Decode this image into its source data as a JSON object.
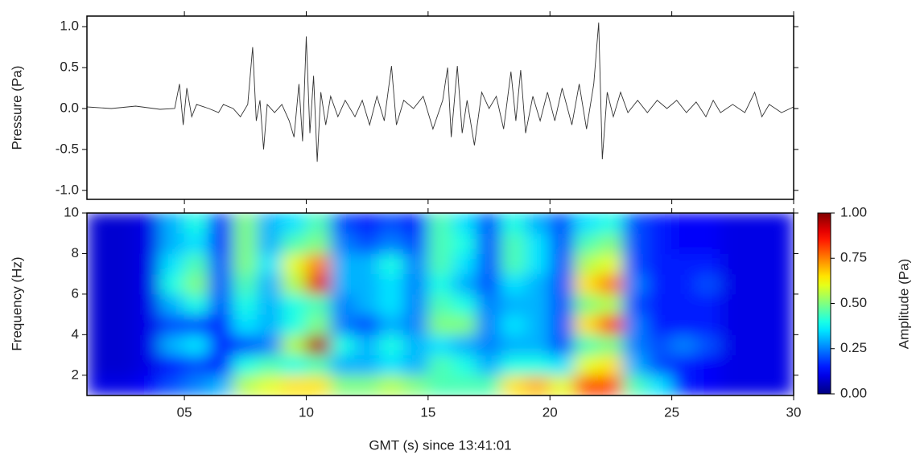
{
  "chart_data": [
    {
      "type": "line",
      "ylabel": "Pressure (Pa)",
      "color": "#333333",
      "xlim": [
        1,
        30
      ],
      "ylim": [
        -1.11,
        1.13
      ],
      "yticks": [
        {
          "value": 1,
          "label": "1.0"
        },
        0.5,
        {
          "value": 0,
          "label": "0.0"
        },
        -0.5,
        {
          "value": -1,
          "label": "-1.0"
        }
      ],
      "x": [
        1,
        2,
        3,
        4,
        4.6,
        4.8,
        4.95,
        5.1,
        5.3,
        5.5,
        6,
        6.4,
        6.6,
        7,
        7.3,
        7.6,
        7.8,
        7.95,
        8.1,
        8.25,
        8.4,
        8.7,
        9,
        9.3,
        9.5,
        9.7,
        9.85,
        10,
        10.15,
        10.3,
        10.45,
        10.6,
        10.8,
        11,
        11.3,
        11.6,
        12,
        12.3,
        12.6,
        12.9,
        13.2,
        13.5,
        13.7,
        14,
        14.4,
        14.8,
        15.2,
        15.6,
        15.8,
        15.95,
        16.2,
        16.4,
        16.6,
        16.9,
        17.2,
        17.5,
        17.8,
        18.1,
        18.4,
        18.6,
        18.8,
        19,
        19.3,
        19.6,
        19.9,
        20.2,
        20.5,
        20.9,
        21.2,
        21.5,
        21.8,
        22,
        22.15,
        22.35,
        22.6,
        22.9,
        23.2,
        23.6,
        24,
        24.4,
        24.8,
        25.2,
        25.6,
        26,
        26.4,
        26.7,
        27,
        27.5,
        28,
        28.4,
        28.7,
        29,
        29.5,
        30
      ],
      "values": [
        0.02,
        0,
        0.03,
        -0.01,
        0,
        0.3,
        -0.2,
        0.25,
        -0.1,
        0.05,
        0,
        -0.05,
        0.05,
        0,
        -0.1,
        0.05,
        0.75,
        -0.15,
        0.1,
        -0.5,
        0.05,
        -0.05,
        0.05,
        -0.15,
        -0.35,
        0.3,
        -0.4,
        0.88,
        -0.3,
        0.4,
        -0.65,
        0.2,
        -0.2,
        0.15,
        -0.1,
        0.1,
        -0.1,
        0.1,
        -0.2,
        0.15,
        -0.15,
        0.52,
        -0.2,
        0.1,
        0,
        0.15,
        -0.25,
        0.1,
        0.5,
        -0.35,
        0.52,
        -0.3,
        0.1,
        -0.45,
        0.2,
        0,
        0.15,
        -0.25,
        0.45,
        -0.15,
        0.47,
        -0.3,
        0.15,
        -0.15,
        0.2,
        -0.15,
        0.25,
        -0.2,
        0.3,
        -0.25,
        0.3,
        1.05,
        -0.62,
        0.2,
        -0.1,
        0.2,
        -0.05,
        0.1,
        -0.05,
        0.1,
        0,
        0.1,
        -0.05,
        0.08,
        -0.1,
        0.1,
        -0.05,
        0.05,
        -0.05,
        0.2,
        -0.1,
        0.05,
        -0.05,
        0.02
      ]
    },
    {
      "type": "heatmap",
      "ylabel": "Frequency (Hz)",
      "xlabel": "GMT (s) since 13:41:01",
      "colorbar_label": "Amplitude (Pa)",
      "colormap": "jet",
      "xlim": [
        1,
        30
      ],
      "ylim": [
        1,
        10
      ],
      "xticks": [
        {
          "value": 5,
          "label": "05"
        },
        10,
        15,
        20,
        25,
        30
      ],
      "yticks": [
        2,
        4,
        6,
        8,
        10
      ],
      "clim": [
        0,
        1
      ],
      "cticks": [
        {
          "value": 0,
          "label": "0.00"
        },
        0.25,
        {
          "value": 0.5,
          "label": "0.50"
        },
        0.75,
        {
          "value": 1,
          "label": "1.00"
        }
      ],
      "x": [
        1.5,
        2.5,
        3.5,
        4.5,
        5.5,
        6.5,
        7.5,
        8.5,
        9.5,
        10.5,
        11.5,
        12.5,
        13.5,
        14.5,
        15.5,
        16.5,
        17.5,
        18.5,
        19.5,
        20.5,
        21.5,
        22.5,
        23.5,
        24.5,
        25.5,
        26.5,
        27.5,
        28.5,
        29.5
      ],
      "y": [
        1.5,
        2.5,
        3.5,
        4.5,
        5.5,
        6.5,
        7.5,
        8.5,
        9.5
      ],
      "z": [
        [
          0.1,
          0.08,
          0.08,
          0.08,
          0.08,
          0.08,
          0.08,
          0.08,
          0.08
        ],
        [
          0.1,
          0.08,
          0.08,
          0.08,
          0.08,
          0.08,
          0.08,
          0.08,
          0.08
        ],
        [
          0.12,
          0.1,
          0.1,
          0.1,
          0.1,
          0.1,
          0.1,
          0.1,
          0.1
        ],
        [
          0.2,
          0.15,
          0.3,
          0.2,
          0.3,
          0.4,
          0.35,
          0.3,
          0.3
        ],
        [
          0.25,
          0.2,
          0.35,
          0.2,
          0.4,
          0.5,
          0.45,
          0.35,
          0.4
        ],
        [
          0.3,
          0.15,
          0.15,
          0.15,
          0.2,
          0.2,
          0.2,
          0.15,
          0.15
        ],
        [
          0.55,
          0.4,
          0.2,
          0.35,
          0.4,
          0.45,
          0.5,
          0.5,
          0.5
        ],
        [
          0.6,
          0.45,
          0.25,
          0.3,
          0.3,
          0.3,
          0.35,
          0.3,
          0.3
        ],
        [
          0.65,
          0.4,
          0.55,
          0.4,
          0.4,
          0.55,
          0.6,
          0.45,
          0.35
        ],
        [
          0.65,
          0.45,
          0.95,
          0.5,
          0.45,
          0.9,
          0.75,
          0.5,
          0.45
        ],
        [
          0.5,
          0.3,
          0.4,
          0.25,
          0.25,
          0.3,
          0.3,
          0.25,
          0.2
        ],
        [
          0.5,
          0.3,
          0.3,
          0.2,
          0.3,
          0.3,
          0.3,
          0.2,
          0.15
        ],
        [
          0.55,
          0.35,
          0.4,
          0.3,
          0.35,
          0.35,
          0.4,
          0.25,
          0.2
        ],
        [
          0.5,
          0.3,
          0.3,
          0.25,
          0.25,
          0.25,
          0.25,
          0.2,
          0.15
        ],
        [
          0.45,
          0.45,
          0.35,
          0.5,
          0.45,
          0.4,
          0.45,
          0.45,
          0.45
        ],
        [
          0.45,
          0.4,
          0.3,
          0.5,
          0.4,
          0.3,
          0.35,
          0.4,
          0.35
        ],
        [
          0.45,
          0.3,
          0.25,
          0.25,
          0.25,
          0.2,
          0.2,
          0.2,
          0.2
        ],
        [
          0.65,
          0.4,
          0.3,
          0.35,
          0.3,
          0.35,
          0.45,
          0.45,
          0.4
        ],
        [
          0.7,
          0.4,
          0.3,
          0.3,
          0.3,
          0.3,
          0.35,
          0.35,
          0.3
        ],
        [
          0.6,
          0.35,
          0.2,
          0.2,
          0.2,
          0.2,
          0.2,
          0.2,
          0.2
        ],
        [
          0.8,
          0.6,
          0.45,
          0.65,
          0.5,
          0.65,
          0.55,
          0.45,
          0.35
        ],
        [
          0.8,
          0.65,
          0.5,
          0.8,
          0.55,
          0.75,
          0.6,
          0.5,
          0.4
        ],
        [
          0.45,
          0.3,
          0.25,
          0.25,
          0.2,
          0.25,
          0.2,
          0.2,
          0.2
        ],
        [
          0.35,
          0.2,
          0.2,
          0.15,
          0.15,
          0.15,
          0.15,
          0.15,
          0.15
        ],
        [
          0.15,
          0.15,
          0.25,
          0.15,
          0.15,
          0.15,
          0.15,
          0.12,
          0.12
        ],
        [
          0.12,
          0.12,
          0.2,
          0.15,
          0.15,
          0.2,
          0.15,
          0.12,
          0.12
        ],
        [
          0.1,
          0.1,
          0.1,
          0.1,
          0.1,
          0.1,
          0.1,
          0.1,
          0.1
        ],
        [
          0.1,
          0.1,
          0.1,
          0.1,
          0.1,
          0.1,
          0.1,
          0.1,
          0.1
        ],
        [
          0.1,
          0.1,
          0.1,
          0.1,
          0.1,
          0.1,
          0.1,
          0.1,
          0.1
        ]
      ]
    }
  ]
}
